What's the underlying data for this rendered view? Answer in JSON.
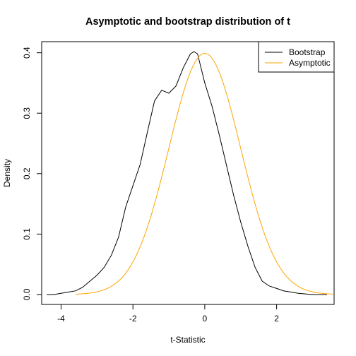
{
  "chart_data": {
    "type": "line",
    "title": "Asymptotic and bootstrap distribution of t",
    "xlabel": "t-Statistic",
    "ylabel": "Density",
    "xlim": [
      -4.54,
      3.6
    ],
    "ylim": [
      -0.0164,
      0.4183
    ],
    "x_ticks": [
      -4,
      -2,
      0,
      2
    ],
    "y_ticks": [
      0.0,
      0.1,
      0.2,
      0.3,
      0.4
    ],
    "x_tick_labels": [
      "-4",
      "-2",
      "0",
      "2"
    ],
    "y_tick_labels": [
      "0.0",
      "0.1",
      "0.2",
      "0.3",
      "0.4"
    ],
    "grid": false,
    "legend_position": "top-right",
    "series": [
      {
        "name": "Bootstrap",
        "color": "#000000",
        "x": [
          -4.4,
          -4.2,
          -4.0,
          -3.8,
          -3.6,
          -3.4,
          -3.2,
          -3.0,
          -2.8,
          -2.6,
          -2.4,
          -2.2,
          -2.0,
          -1.8,
          -1.6,
          -1.4,
          -1.2,
          -1.0,
          -0.8,
          -0.6,
          -0.4,
          -0.3,
          -0.2,
          0.0,
          0.2,
          0.4,
          0.6,
          0.8,
          1.0,
          1.2,
          1.4,
          1.6,
          1.8,
          2.0,
          2.2,
          2.4,
          2.6,
          2.8,
          3.0,
          3.2,
          3.4
        ],
        "values": [
          0.0,
          0.0,
          0.002,
          0.004,
          0.006,
          0.012,
          0.022,
          0.032,
          0.045,
          0.065,
          0.095,
          0.145,
          0.18,
          0.215,
          0.268,
          0.32,
          0.338,
          0.333,
          0.345,
          0.375,
          0.398,
          0.402,
          0.398,
          0.35,
          0.312,
          0.265,
          0.215,
          0.165,
          0.12,
          0.08,
          0.045,
          0.022,
          0.014,
          0.01,
          0.006,
          0.004,
          0.002,
          0.001,
          0.0,
          0.0,
          0.0
        ]
      },
      {
        "name": "Asymptotic",
        "color": "#ffa500",
        "function": "standard normal density",
        "x_range": [
          -3.6,
          3.6
        ]
      }
    ]
  }
}
